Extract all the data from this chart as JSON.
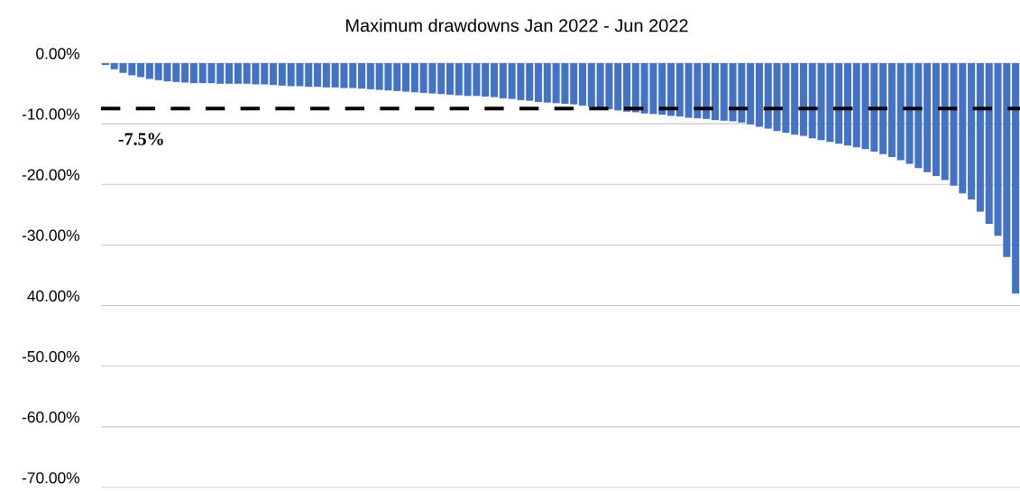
{
  "chart_data": {
    "type": "bar",
    "title": "Maximum drawdowns  Jan 2022  - Jun 2022",
    "categories": [
      null,
      null,
      null,
      null,
      null,
      null,
      null,
      null,
      null,
      null,
      null,
      null,
      null,
      null,
      null,
      null,
      null,
      null,
      null,
      null,
      null,
      null,
      null,
      null,
      null,
      null,
      null,
      null,
      null,
      null,
      null,
      null,
      null,
      null,
      null,
      null,
      null,
      null,
      null,
      null,
      null,
      null,
      null,
      null,
      null,
      null,
      null,
      null,
      null,
      null,
      null,
      null,
      null,
      null,
      null,
      null,
      null,
      null,
      null,
      null,
      null,
      null,
      null,
      null,
      null,
      null,
      null,
      null,
      null,
      null,
      null,
      null,
      null,
      null,
      null,
      null,
      null,
      null,
      null,
      null,
      null,
      null,
      null,
      null,
      null,
      null,
      null,
      null,
      null,
      null,
      null,
      null,
      null,
      null,
      null,
      null,
      null,
      null,
      null,
      null,
      null,
      null,
      null,
      null
    ],
    "values": [
      -0.3,
      -1.0,
      -1.6,
      -2.0,
      -2.3,
      -2.6,
      -2.8,
      -3.0,
      -3.1,
      -3.2,
      -3.3,
      -3.3,
      -3.3,
      -3.4,
      -3.4,
      -3.4,
      -3.4,
      -3.5,
      -3.5,
      -3.6,
      -3.7,
      -3.8,
      -3.8,
      -3.9,
      -3.9,
      -4.0,
      -4.0,
      -4.1,
      -4.1,
      -4.2,
      -4.3,
      -4.4,
      -4.5,
      -4.6,
      -4.7,
      -4.8,
      -4.9,
      -5.0,
      -5.1,
      -5.2,
      -5.3,
      -5.4,
      -5.4,
      -5.5,
      -5.6,
      -5.8,
      -5.9,
      -6.1,
      -6.2,
      -6.4,
      -6.5,
      -6.6,
      -6.7,
      -6.8,
      -7.0,
      -7.2,
      -7.4,
      -7.6,
      -7.8,
      -8.0,
      -8.1,
      -8.3,
      -8.4,
      -8.5,
      -8.7,
      -8.8,
      -9.0,
      -9.1,
      -9.2,
      -9.4,
      -9.5,
      -9.6,
      -9.8,
      -10.1,
      -10.5,
      -10.8,
      -11.2,
      -11.5,
      -11.8,
      -12.0,
      -12.4,
      -12.7,
      -13.0,
      -13.3,
      -13.6,
      -13.9,
      -14.2,
      -14.6,
      -15.0,
      -15.5,
      -16.0,
      -16.6,
      -17.3,
      -18.0,
      -18.6,
      -19.3,
      -20.2,
      -21.5,
      -22.5,
      -24.5,
      -26.5,
      -28.5,
      -32,
      -38
    ],
    "color": "#4472c4",
    "ylim": [
      -70,
      0
    ],
    "yticks": [
      {
        "value": 0,
        "label": "0.00%"
      },
      {
        "value": -10,
        "label": "-10.00%"
      },
      {
        "value": -20,
        "label": "-20.00%"
      },
      {
        "value": -30,
        "label": "-30.00%"
      },
      {
        "value": -40,
        "label": "40.00%"
      },
      {
        "value": -50,
        "label": "-50.00%"
      },
      {
        "value": -60,
        "label": "-60.00%"
      },
      {
        "value": -70,
        "label": "-70.00%"
      }
    ],
    "grid": "y",
    "tick_labels": "y",
    "ref_lines": [
      {
        "axis": "y",
        "value": -7.5,
        "label": "-7.5%",
        "color": "#000000",
        "line_style": "dashed"
      }
    ]
  }
}
